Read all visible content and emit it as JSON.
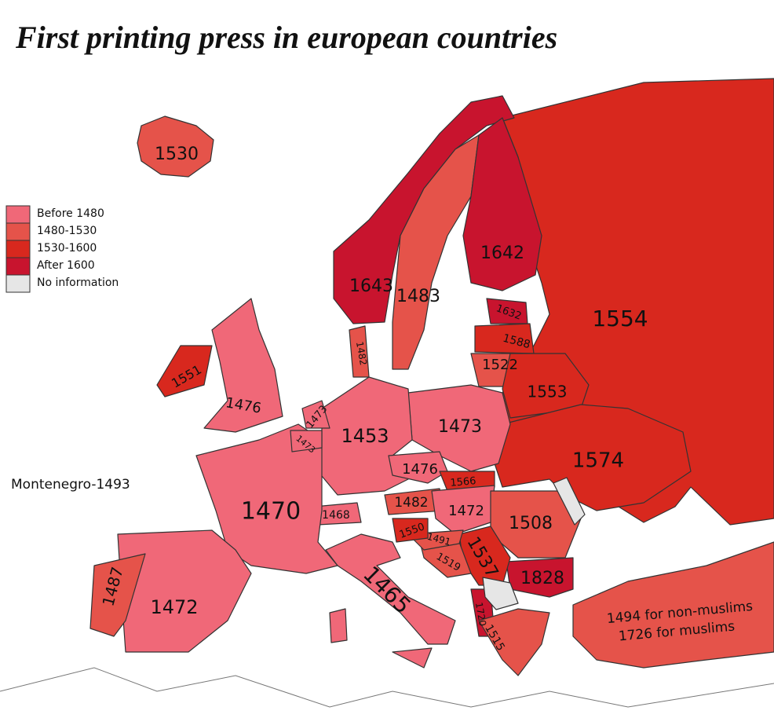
{
  "title": "First printing press in european countries",
  "legend": [
    {
      "label": "Before 1480",
      "color": "#f06878"
    },
    {
      "label": "1480-1530",
      "color": "#e5534a"
    },
    {
      "label": "1530-1600",
      "color": "#d8281e"
    },
    {
      "label": "After 1600",
      "color": "#c8142e"
    },
    {
      "label": "No information",
      "color": "#e6e6e6"
    }
  ],
  "regions": [
    {
      "label": "1554",
      "color": "#d8281e"
    },
    {
      "label": "1530",
      "color": "#e5534a"
    },
    {
      "label": "1643",
      "color": "#c8142e"
    },
    {
      "label": "1483",
      "color": "#e5534a"
    },
    {
      "label": "1642",
      "color": "#c8142e"
    },
    {
      "label": "1632",
      "color": "#c8142e"
    },
    {
      "label": "1588",
      "color": "#d8281e"
    },
    {
      "label": "1522",
      "color": "#e5534a"
    },
    {
      "label": "1553",
      "color": "#d8281e"
    },
    {
      "label": "1574",
      "color": "#d8281e"
    },
    {
      "label": "1473",
      "color": "#f06878"
    },
    {
      "label": "1453",
      "color": "#f06878"
    },
    {
      "label": "1476",
      "color": "#f06878"
    },
    {
      "label": "1566",
      "color": "#d8281e"
    },
    {
      "label": "1482",
      "color": "#e5534a"
    },
    {
      "label": "1472",
      "color": "#f06878"
    },
    {
      "label": "1468",
      "color": "#f06878"
    },
    {
      "label": "1508",
      "color": "#e5534a"
    },
    {
      "label": "1828",
      "color": "#c8142e"
    },
    {
      "label": "1537",
      "color": "#d8281e"
    },
    {
      "label": "1519",
      "color": "#e5534a"
    },
    {
      "label": "1491",
      "color": "#e5534a"
    },
    {
      "label": "1550",
      "color": "#d8281e"
    },
    {
      "label": "1720",
      "color": "#c8142e"
    },
    {
      "label": "1515",
      "color": "#e5534a"
    },
    {
      "label": "1465",
      "color": "#f06878"
    },
    {
      "label": "1470",
      "color": "#f06878"
    },
    {
      "label": "1472",
      "color": "#f06878"
    },
    {
      "label": "1487",
      "color": "#e5534a"
    },
    {
      "label": "1476",
      "color": "#f06878"
    },
    {
      "label": "1551",
      "color": "#d8281e"
    },
    {
      "label": "1473",
      "color": "#f06878"
    },
    {
      "label": "1473",
      "color": "#f06878"
    },
    {
      "label": "1482",
      "color": "#e5534a"
    }
  ],
  "turkey": {
    "lines": [
      "1494 for non-muslims",
      "1726 for muslims"
    ],
    "color": "#e5534a"
  },
  "note": "Montenegro-1493"
}
